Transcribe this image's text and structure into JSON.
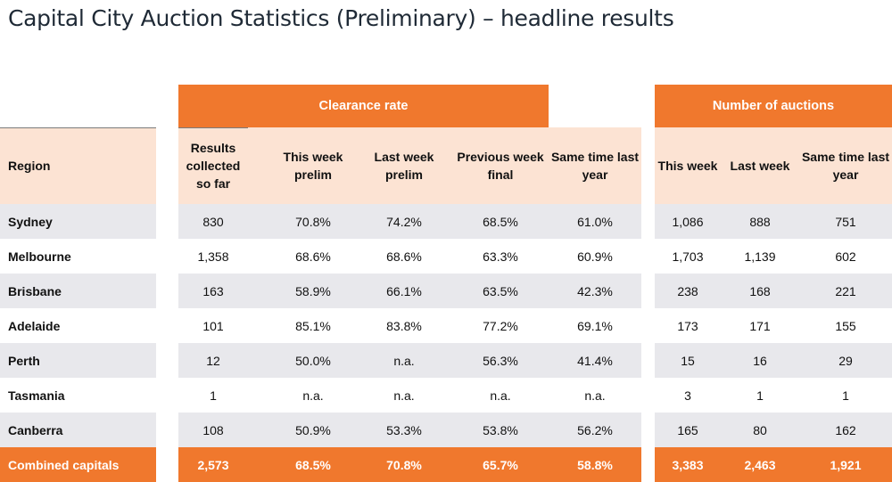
{
  "title": "Capital City Auction Statistics (Preliminary) – headline results",
  "group_headers": {
    "clearance_rate": "Clearance rate",
    "number_of_auctions": "Number of auctions"
  },
  "columns": {
    "region": "Region",
    "results": "Results collected so far",
    "cr_this_week": "This week prelim",
    "cr_last_week": "Last week prelim",
    "cr_prev_final": "Previous week final",
    "cr_last_year": "Same time last year",
    "na_this_week": "This week",
    "na_last_week": "Last week",
    "na_last_year": "Same time last year"
  },
  "rows": [
    {
      "region": "Sydney",
      "results": "830",
      "cr_this": "70.8%",
      "cr_last": "74.2%",
      "cr_prev": "68.5%",
      "cr_year": "61.0%",
      "na_this": "1,086",
      "na_last": "888",
      "na_year": "751"
    },
    {
      "region": "Melbourne",
      "results": "1,358",
      "cr_this": "68.6%",
      "cr_last": "68.6%",
      "cr_prev": "63.3%",
      "cr_year": "60.9%",
      "na_this": "1,703",
      "na_last": "1,139",
      "na_year": "602"
    },
    {
      "region": "Brisbane",
      "results": "163",
      "cr_this": "58.9%",
      "cr_last": "66.1%",
      "cr_prev": "63.5%",
      "cr_year": "42.3%",
      "na_this": "238",
      "na_last": "168",
      "na_year": "221"
    },
    {
      "region": "Adelaide",
      "results": "101",
      "cr_this": "85.1%",
      "cr_last": "83.8%",
      "cr_prev": "77.2%",
      "cr_year": "69.1%",
      "na_this": "173",
      "na_last": "171",
      "na_year": "155"
    },
    {
      "region": "Perth",
      "results": "12",
      "cr_this": "50.0%",
      "cr_last": "n.a.",
      "cr_prev": "56.3%",
      "cr_year": "41.4%",
      "na_this": "15",
      "na_last": "16",
      "na_year": "29"
    },
    {
      "region": "Tasmania",
      "results": "1",
      "cr_this": "n.a.",
      "cr_last": "n.a.",
      "cr_prev": "n.a.",
      "cr_year": "n.a.",
      "na_this": "3",
      "na_last": "1",
      "na_year": "1"
    },
    {
      "region": "Canberra",
      "results": "108",
      "cr_this": "50.9%",
      "cr_last": "53.3%",
      "cr_prev": "53.8%",
      "cr_year": "56.2%",
      "na_this": "165",
      "na_last": "80",
      "na_year": "162"
    }
  ],
  "total": {
    "region": "Combined capitals",
    "results": "2,573",
    "cr_this": "68.5%",
    "cr_last": "70.8%",
    "cr_prev": "65.7%",
    "cr_year": "58.8%",
    "na_this": "3,383",
    "na_last": "2,463",
    "na_year": "1,921"
  },
  "colors": {
    "accent_orange": "#f0782d",
    "header_peach": "#fce3d3",
    "row_grey": "#e8e8ec",
    "title_navy": "#1f2a36"
  }
}
